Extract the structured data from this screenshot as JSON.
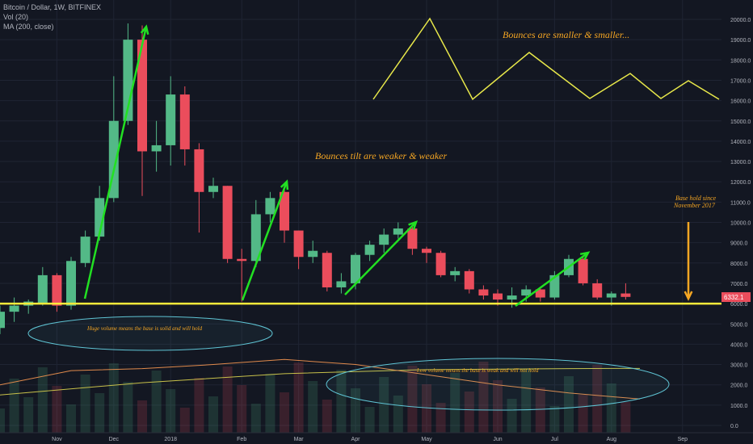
{
  "header": {
    "title": "Bitcoin / Dollar, 1W, BITFINEX",
    "vol_label": "Vol (20)",
    "ma_label": "MA (200, close)"
  },
  "price_badge": "6332.1",
  "colors": {
    "background": "#131722",
    "up": "#53b987",
    "down": "#eb4d5c",
    "support": "#ffeb3b",
    "arrows": "#22e022",
    "annotation": "#f5a623",
    "ellipse": "#5fc4d4",
    "ma": "#c8c14a",
    "vol_line": "#e08a4c",
    "bounce_line": "#e8e84a"
  },
  "annotations": {
    "bounces_smaller": "Bounces are smaller & smaller...",
    "bounces_tilt": "Bounces tilt are weaker & weaker",
    "base_hold_1": "Base hold since",
    "base_hold_2": "November 2017",
    "huge_volume": "Huge volume means the base is solid and will hold",
    "low_volume": "Low volume means the base is weak and will not hold"
  },
  "chart_data": {
    "type": "candlestick",
    "interval": "1W",
    "y_axis": {
      "ticks": [
        0,
        1000,
        2000,
        3000,
        4000,
        5000,
        6000,
        7000,
        8000,
        9000,
        10000,
        11000,
        12000,
        13000,
        14000,
        15000,
        16000,
        17000,
        18000,
        19000,
        20000
      ],
      "tick_labels": [
        "0.0",
        "1000.0",
        "2000.0",
        "3000.0",
        "4000.0",
        "5000.0",
        "6000.0",
        "7000.0",
        "8000.0",
        "9000.0",
        "10000.0",
        "11000.0",
        "12000.0",
        "13000.0",
        "14000.0",
        "15000.0",
        "16000.0",
        "17000.0",
        "18000.0",
        "19000.0",
        "20000.0"
      ],
      "range": [
        -400,
        21000
      ]
    },
    "x_axis": {
      "labels": [
        "Nov",
        "Dec",
        "2018",
        "Feb",
        "Mar",
        "Apr",
        "May",
        "Jun",
        "Jul",
        "Aug",
        "Sep"
      ],
      "label_candle_index": [
        4,
        8,
        12,
        17,
        21,
        25,
        30,
        35,
        39,
        43,
        48
      ]
    },
    "candles": [
      {
        "o": 4800,
        "c": 5600,
        "h": 5900,
        "l": 4500
      },
      {
        "o": 5600,
        "c": 5900,
        "h": 6300,
        "l": 5100
      },
      {
        "o": 5900,
        "c": 6100,
        "h": 6200,
        "l": 5500
      },
      {
        "o": 6000,
        "c": 7400,
        "h": 7800,
        "l": 5900
      },
      {
        "o": 7400,
        "c": 5900,
        "h": 7500,
        "l": 5600
      },
      {
        "o": 5900,
        "c": 8100,
        "h": 8300,
        "l": 5700
      },
      {
        "o": 8000,
        "c": 9300,
        "h": 9600,
        "l": 7800
      },
      {
        "o": 9300,
        "c": 11200,
        "h": 11800,
        "l": 9100
      },
      {
        "o": 11200,
        "c": 15000,
        "h": 17200,
        "l": 11000
      },
      {
        "o": 15000,
        "c": 19000,
        "h": 19800,
        "l": 14800
      },
      {
        "o": 19000,
        "c": 13500,
        "h": 19700,
        "l": 11300
      },
      {
        "o": 13500,
        "c": 13800,
        "h": 15000,
        "l": 12500
      },
      {
        "o": 13800,
        "c": 16300,
        "h": 17200,
        "l": 12800
      },
      {
        "o": 16300,
        "c": 13600,
        "h": 16700,
        "l": 12800
      },
      {
        "o": 13600,
        "c": 11500,
        "h": 13900,
        "l": 9500
      },
      {
        "o": 11500,
        "c": 11800,
        "h": 12200,
        "l": 11200
      },
      {
        "o": 11800,
        "c": 8200,
        "h": 11800,
        "l": 8000
      },
      {
        "o": 8200,
        "c": 8100,
        "h": 8700,
        "l": 6100
      },
      {
        "o": 8100,
        "c": 10400,
        "h": 11100,
        "l": 7800
      },
      {
        "o": 10400,
        "c": 11200,
        "h": 11500,
        "l": 10000
      },
      {
        "o": 11500,
        "c": 9600,
        "h": 11600,
        "l": 9000
      },
      {
        "o": 9600,
        "c": 8300,
        "h": 9600,
        "l": 7700
      },
      {
        "o": 8300,
        "c": 8600,
        "h": 9100,
        "l": 8000
      },
      {
        "o": 8500,
        "c": 6800,
        "h": 8600,
        "l": 6600
      },
      {
        "o": 6800,
        "c": 7100,
        "h": 7500,
        "l": 6500
      },
      {
        "o": 7000,
        "c": 8400,
        "h": 8500,
        "l": 6700
      },
      {
        "o": 8400,
        "c": 8900,
        "h": 9100,
        "l": 8100
      },
      {
        "o": 8900,
        "c": 9400,
        "h": 9700,
        "l": 8500
      },
      {
        "o": 9400,
        "c": 9700,
        "h": 10000,
        "l": 9200
      },
      {
        "o": 9700,
        "c": 8700,
        "h": 9800,
        "l": 8400
      },
      {
        "o": 8700,
        "c": 8500,
        "h": 8800,
        "l": 8000
      },
      {
        "o": 8500,
        "c": 7400,
        "h": 8600,
        "l": 7300
      },
      {
        "o": 7400,
        "c": 7600,
        "h": 7800,
        "l": 7100
      },
      {
        "o": 7600,
        "c": 6700,
        "h": 7700,
        "l": 6500
      },
      {
        "o": 6700,
        "c": 6400,
        "h": 6900,
        "l": 6200
      },
      {
        "o": 6500,
        "c": 6200,
        "h": 6700,
        "l": 5900
      },
      {
        "o": 6200,
        "c": 6400,
        "h": 6800,
        "l": 5800
      },
      {
        "o": 6400,
        "c": 6700,
        "h": 6900,
        "l": 6100
      },
      {
        "o": 6700,
        "c": 6300,
        "h": 6800,
        "l": 6100
      },
      {
        "o": 6300,
        "c": 7400,
        "h": 7600,
        "l": 6200
      },
      {
        "o": 7400,
        "c": 8200,
        "h": 8400,
        "l": 7300
      },
      {
        "o": 8200,
        "c": 7000,
        "h": 8300,
        "l": 6900
      },
      {
        "o": 7000,
        "c": 6300,
        "h": 7200,
        "l": 6200
      },
      {
        "o": 6300,
        "c": 6500,
        "h": 6600,
        "l": 5900
      },
      {
        "o": 6500,
        "c": 6330,
        "h": 7000,
        "l": 6200
      }
    ],
    "support_level": 6000,
    "ma200_line": {
      "x_candle": [
        0,
        10,
        20,
        30,
        40,
        45
      ],
      "y": [
        1500,
        2100,
        2550,
        2750,
        2800,
        2810
      ]
    },
    "volume_line": {
      "x_candle": [
        0,
        5,
        10,
        15,
        20,
        25,
        30,
        35,
        40,
        45
      ],
      "y": [
        2000,
        2700,
        2800,
        3000,
        3250,
        3000,
        2500,
        2000,
        1600,
        1300
      ]
    }
  }
}
